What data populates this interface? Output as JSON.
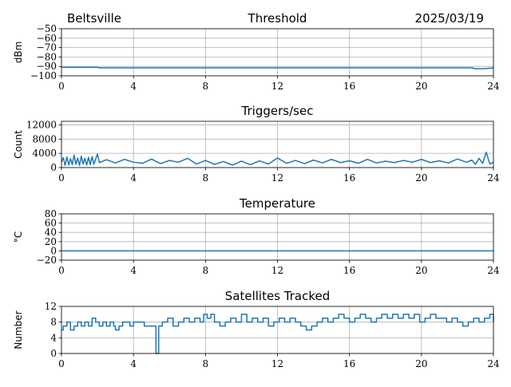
{
  "header": {
    "station": "Beltsville",
    "date": "2025/03/19"
  },
  "series_color": "#1f77b4",
  "chart_data": [
    {
      "type": "line",
      "title": "Threshold",
      "ylabel": "dBm",
      "xlim": [
        0,
        24
      ],
      "ylim": [
        -100,
        -50
      ],
      "xticks": [
        0,
        4,
        8,
        12,
        16,
        20,
        24
      ],
      "yticks": [
        -100,
        -90,
        -80,
        -70,
        -60,
        -50
      ],
      "ytick_labels": [
        "−100",
        "−90",
        "−80",
        "−70",
        "−60",
        "−50"
      ],
      "grid": true,
      "x": [
        0,
        2,
        2.1,
        4,
        8,
        12,
        16,
        20,
        22.8,
        23,
        23.5,
        24
      ],
      "y": [
        -91,
        -91,
        -91.5,
        -91.5,
        -91.5,
        -91.5,
        -91.5,
        -91.5,
        -91.5,
        -92.5,
        -92.5,
        -91.5
      ]
    },
    {
      "type": "line",
      "title": "Triggers/sec",
      "ylabel": "Count",
      "xlim": [
        0,
        24
      ],
      "ylim": [
        0,
        13000
      ],
      "xticks": [
        0,
        4,
        8,
        12,
        16,
        20,
        24
      ],
      "yticks": [
        0,
        4000,
        8000,
        12000
      ],
      "ytick_labels": [
        "0",
        "4000",
        "8000",
        "12000"
      ],
      "grid": true,
      "x": [
        0,
        0.1,
        0.2,
        0.3,
        0.4,
        0.5,
        0.6,
        0.7,
        0.8,
        0.9,
        1.0,
        1.1,
        1.2,
        1.3,
        1.4,
        1.5,
        1.6,
        1.7,
        1.8,
        1.9,
        2.0,
        2.1,
        2.5,
        3.0,
        3.5,
        4.0,
        4.5,
        5.0,
        5.5,
        6.0,
        6.5,
        7.0,
        7.5,
        8.0,
        8.5,
        9.0,
        9.5,
        10.0,
        10.5,
        11.0,
        11.5,
        12.0,
        12.5,
        13.0,
        13.5,
        14.0,
        14.5,
        15.0,
        15.5,
        16.0,
        16.5,
        17.0,
        17.5,
        18.0,
        18.5,
        19.0,
        19.5,
        20.0,
        20.5,
        21.0,
        21.5,
        22.0,
        22.5,
        22.8,
        23.0,
        23.2,
        23.4,
        23.6,
        23.8,
        24.0
      ],
      "y": [
        1500,
        2800,
        600,
        3000,
        700,
        2500,
        800,
        3500,
        900,
        2700,
        600,
        3200,
        1000,
        2600,
        700,
        2900,
        800,
        3100,
        900,
        2400,
        3800,
        1400,
        2200,
        1300,
        2300,
        1500,
        1200,
        2400,
        1100,
        2000,
        1500,
        2600,
        1000,
        2000,
        900,
        1700,
        700,
        1800,
        800,
        1900,
        1000,
        2700,
        1200,
        2000,
        1100,
        2100,
        1300,
        2300,
        1400,
        1900,
        1200,
        2300,
        1300,
        1800,
        1400,
        2000,
        1500,
        2300,
        1400,
        1900,
        1300,
        2400,
        1500,
        2100,
        900,
        2600,
        1200,
        4300,
        1000,
        1500
      ]
    },
    {
      "type": "line",
      "title": "Temperature",
      "ylabel": "°C",
      "xlim": [
        0,
        24
      ],
      "ylim": [
        -20,
        80
      ],
      "xticks": [
        0,
        4,
        8,
        12,
        16,
        20,
        24
      ],
      "yticks": [
        -20,
        0,
        20,
        40,
        60,
        80
      ],
      "ytick_labels": [
        "−20",
        "0",
        "20",
        "40",
        "60",
        "80"
      ],
      "grid": true,
      "x": [
        0,
        24
      ],
      "y": [
        0,
        0
      ]
    },
    {
      "type": "line",
      "title": "Satellites Tracked",
      "ylabel": "Number",
      "xlim": [
        0,
        24
      ],
      "ylim": [
        0,
        12
      ],
      "xticks": [
        0,
        4,
        8,
        12,
        16,
        20,
        24
      ],
      "yticks": [
        0,
        4,
        8,
        12
      ],
      "ytick_labels": [
        "0",
        "4",
        "8",
        "12"
      ],
      "grid": true,
      "step": true,
      "x": [
        0,
        0.1,
        0.3,
        0.5,
        0.7,
        0.9,
        1.1,
        1.3,
        1.5,
        1.7,
        1.9,
        2.1,
        2.3,
        2.5,
        2.7,
        2.9,
        3.0,
        3.2,
        3.4,
        3.6,
        3.8,
        4.0,
        4.3,
        4.6,
        5.0,
        5.1,
        5.2,
        5.25,
        5.4,
        5.6,
        5.9,
        6.2,
        6.5,
        6.8,
        7.1,
        7.4,
        7.7,
        7.9,
        8.1,
        8.3,
        8.5,
        8.8,
        9.1,
        9.4,
        9.7,
        10.0,
        10.3,
        10.6,
        10.9,
        11.2,
        11.5,
        11.8,
        12.1,
        12.4,
        12.7,
        13.0,
        13.3,
        13.6,
        13.9,
        14.2,
        14.5,
        14.8,
        15.1,
        15.4,
        15.7,
        16.0,
        16.3,
        16.6,
        16.9,
        17.2,
        17.5,
        17.8,
        18.1,
        18.4,
        18.7,
        19.0,
        19.3,
        19.6,
        19.9,
        20.2,
        20.5,
        20.8,
        21.1,
        21.4,
        21.7,
        22.0,
        22.3,
        22.6,
        22.9,
        23.2,
        23.5,
        23.8,
        24.0
      ],
      "y": [
        6,
        7,
        8,
        6,
        7,
        8,
        7,
        8,
        7,
        9,
        8,
        7,
        8,
        7,
        8,
        7,
        6,
        7,
        8,
        8,
        7,
        8,
        8,
        7,
        7,
        7,
        7,
        0,
        7,
        8,
        9,
        7,
        8,
        9,
        8,
        9,
        8,
        10,
        9,
        10,
        8,
        7,
        8,
        9,
        8,
        10,
        8,
        9,
        8,
        9,
        7,
        8,
        9,
        8,
        9,
        8,
        7,
        6,
        7,
        8,
        9,
        8,
        9,
        10,
        9,
        8,
        9,
        10,
        9,
        8,
        9,
        10,
        9,
        10,
        9,
        10,
        9,
        10,
        8,
        9,
        10,
        9,
        9,
        8,
        9,
        8,
        7,
        8,
        9,
        8,
        9,
        10,
        8
      ]
    }
  ]
}
